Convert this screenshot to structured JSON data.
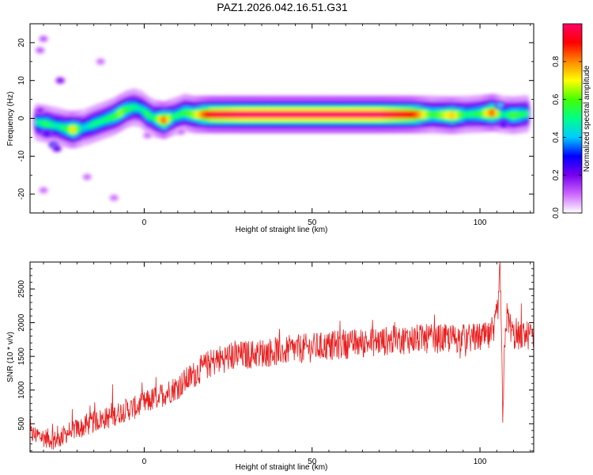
{
  "figure": {
    "title": "PAZ1.2026.042.16.51.G31"
  },
  "chart_data": [
    {
      "type": "heatmap",
      "title": "PAZ1.2026.042.16.51.G31",
      "xlabel": "Height of straight line (km)",
      "ylabel": "Frequency (Hz)",
      "xlim": [
        -34,
        116
      ],
      "ylim": [
        -25,
        25
      ],
      "x_ticks": [
        0,
        50,
        100
      ],
      "y_ticks": [
        -20,
        -10,
        0,
        10,
        20
      ],
      "colorbar": {
        "label": "Normalized spectral amplitude",
        "range": [
          0,
          1
        ],
        "ticks": [
          "0.0",
          "0.2",
          "0.4",
          "0.6",
          "0.8"
        ],
        "colormap": [
          "#ffffff",
          "#cc66ff",
          "#7700ee",
          "#0000ff",
          "#00ccff",
          "#00ff88",
          "#44ff00",
          "#ffff00",
          "#ff8800",
          "#ff0000",
          "#ff0066"
        ]
      },
      "ridge": [
        {
          "x": -32,
          "f": -1.0,
          "a": 0.45
        },
        {
          "x": -29,
          "f": -1.5,
          "a": 0.55
        },
        {
          "x": -26,
          "f": -2.0,
          "a": 0.45
        },
        {
          "x": -23,
          "f": -2.8,
          "a": 0.55
        },
        {
          "x": -21,
          "f": -3.0,
          "a": 0.75
        },
        {
          "x": -18,
          "f": -2.5,
          "a": 0.4
        },
        {
          "x": -15,
          "f": -1.5,
          "a": 0.5
        },
        {
          "x": -12,
          "f": -0.5,
          "a": 0.5
        },
        {
          "x": -9,
          "f": 0.5,
          "a": 0.55
        },
        {
          "x": -7,
          "f": 1.5,
          "a": 0.65
        },
        {
          "x": -5,
          "f": 2.5,
          "a": 0.55
        },
        {
          "x": -3,
          "f": 3.0,
          "a": 0.5
        },
        {
          "x": -1,
          "f": 2.5,
          "a": 0.45
        },
        {
          "x": 1,
          "f": 1.0,
          "a": 0.55
        },
        {
          "x": 3,
          "f": 0.0,
          "a": 0.5
        },
        {
          "x": 6,
          "f": -0.5,
          "a": 0.85
        },
        {
          "x": 9,
          "f": 0.5,
          "a": 0.5
        },
        {
          "x": 12,
          "f": 1.5,
          "a": 0.55
        },
        {
          "x": 15,
          "f": 1.0,
          "a": 0.65
        },
        {
          "x": 20,
          "f": 1.0,
          "a": 0.95
        },
        {
          "x": 30,
          "f": 1.0,
          "a": 1.0
        },
        {
          "x": 40,
          "f": 1.0,
          "a": 1.0
        },
        {
          "x": 50,
          "f": 1.0,
          "a": 1.0
        },
        {
          "x": 60,
          "f": 1.0,
          "a": 1.0
        },
        {
          "x": 70,
          "f": 1.0,
          "a": 1.0
        },
        {
          "x": 80,
          "f": 1.0,
          "a": 0.9
        },
        {
          "x": 86,
          "f": 1.0,
          "a": 0.55
        },
        {
          "x": 92,
          "f": 0.8,
          "a": 0.75
        },
        {
          "x": 96,
          "f": 1.0,
          "a": 0.5
        },
        {
          "x": 100,
          "f": 1.2,
          "a": 0.55
        },
        {
          "x": 104,
          "f": 1.5,
          "a": 0.85
        },
        {
          "x": 107,
          "f": 1.0,
          "a": 0.45
        },
        {
          "x": 110,
          "f": 0.8,
          "a": 0.6
        },
        {
          "x": 114,
          "f": 1.2,
          "a": 0.5
        }
      ],
      "blobs": [
        {
          "x": -29,
          "f": -4.0,
          "a": 0.3
        },
        {
          "x": -27,
          "f": -7.0,
          "a": 0.35
        },
        {
          "x": -26,
          "f": -8.0,
          "a": 0.25
        },
        {
          "x": -31,
          "f": 2.0,
          "a": 0.2
        },
        {
          "x": -25,
          "f": 10.0,
          "a": 0.2
        },
        {
          "x": -30,
          "f": 21.0,
          "a": 0.12
        },
        {
          "x": -31,
          "f": 18.0,
          "a": 0.12
        },
        {
          "x": -13,
          "f": 15.0,
          "a": 0.1
        },
        {
          "x": -17,
          "f": -15.5,
          "a": 0.1
        },
        {
          "x": -9,
          "f": -21.0,
          "a": 0.1
        },
        {
          "x": -30,
          "f": -19.0,
          "a": 0.1
        },
        {
          "x": 1,
          "f": -4.5,
          "a": 0.1
        },
        {
          "x": 11,
          "f": -3.5,
          "a": 0.1
        },
        {
          "x": 106,
          "f": 3.5,
          "a": 0.4
        },
        {
          "x": 107,
          "f": -1.5,
          "a": 0.3
        }
      ]
    },
    {
      "type": "line",
      "xlabel": "Height of straight line (km)",
      "ylabel": "SNR (10 * v/v)",
      "xlim": [
        -34,
        116
      ],
      "ylim": [
        80,
        2900
      ],
      "x_ticks": [
        0,
        50,
        100
      ],
      "y_ticks": [
        500,
        1000,
        1500,
        2000,
        2500
      ],
      "line_color": "#e82020",
      "trend": [
        {
          "x": -34,
          "y": 350
        },
        {
          "x": -30,
          "y": 300
        },
        {
          "x": -26,
          "y": 250
        },
        {
          "x": -22,
          "y": 400
        },
        {
          "x": -18,
          "y": 450
        },
        {
          "x": -14,
          "y": 550
        },
        {
          "x": -10,
          "y": 600
        },
        {
          "x": -6,
          "y": 700
        },
        {
          "x": -2,
          "y": 750
        },
        {
          "x": 2,
          "y": 850
        },
        {
          "x": 6,
          "y": 950
        },
        {
          "x": 10,
          "y": 1050
        },
        {
          "x": 14,
          "y": 1200
        },
        {
          "x": 18,
          "y": 1350
        },
        {
          "x": 22,
          "y": 1450
        },
        {
          "x": 26,
          "y": 1500
        },
        {
          "x": 30,
          "y": 1520
        },
        {
          "x": 40,
          "y": 1580
        },
        {
          "x": 50,
          "y": 1630
        },
        {
          "x": 60,
          "y": 1680
        },
        {
          "x": 70,
          "y": 1720
        },
        {
          "x": 80,
          "y": 1760
        },
        {
          "x": 90,
          "y": 1760
        },
        {
          "x": 100,
          "y": 1780
        },
        {
          "x": 104,
          "y": 1790
        },
        {
          "x": 105.5,
          "y": 2300
        },
        {
          "x": 106,
          "y": 2800
        },
        {
          "x": 106.4,
          "y": 1900
        },
        {
          "x": 106.8,
          "y": 380
        },
        {
          "x": 107.3,
          "y": 1700
        },
        {
          "x": 108,
          "y": 2100
        },
        {
          "x": 110,
          "y": 1800
        },
        {
          "x": 116,
          "y": 1820
        }
      ],
      "noise": 220
    }
  ]
}
